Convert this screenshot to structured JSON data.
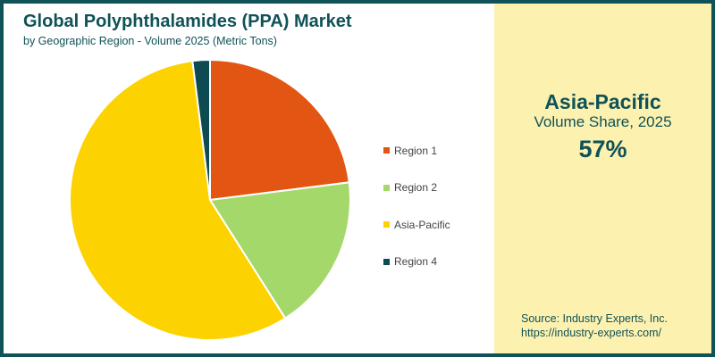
{
  "header": {
    "title": "Global Polyphthalamides (PPA) Market",
    "subtitle": "by Geographic Region - Volume 2025 (Metric Tons)"
  },
  "highlight": {
    "region": "Asia-Pacific",
    "label": "Volume Share, 2025",
    "value": "57%"
  },
  "source": {
    "line1": "Source: Industry Experts, Inc.",
    "line2": "https://industry-experts.com/"
  },
  "colors": {
    "border": "#0f5257",
    "panel": "#fdf1b0"
  },
  "chart_data": {
    "type": "pie",
    "title": "Global Polyphthalamides (PPA) Market",
    "subtitle": "by Geographic Region - Volume 2025 (Metric Tons)",
    "categories": [
      "Region 1",
      "Region 2",
      "Asia-Pacific",
      "Region 4"
    ],
    "values": [
      23,
      18,
      57,
      2
    ],
    "colors": [
      "#e35512",
      "#a5d86a",
      "#fcd200",
      "#0d4a52"
    ],
    "legend_position": "right",
    "start_angle": "12 o'clock, clockwise"
  }
}
